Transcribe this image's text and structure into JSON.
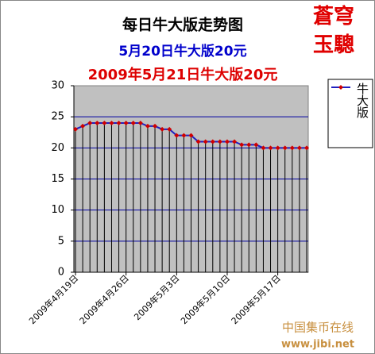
{
  "chart_data": {
    "type": "line",
    "title": "每日牛大版走势图",
    "subtitle": "5月20日牛大版20元",
    "subtitle2": "2009年5月21日牛大版20元",
    "stamp": [
      "蒼穹",
      "玉驄"
    ],
    "watermark": [
      "中国集币在线",
      "www.jibi.net"
    ],
    "categories": [
      "2009年4月19日",
      null,
      null,
      null,
      null,
      null,
      null,
      "2009年4月26日",
      null,
      null,
      null,
      null,
      null,
      null,
      "2009年5月3日",
      null,
      null,
      null,
      null,
      null,
      null,
      "2009年5月10日",
      null,
      null,
      null,
      null,
      null,
      null,
      "2009年5月17日",
      null,
      null,
      null,
      null
    ],
    "series": [
      {
        "name": "牛大版",
        "color": "#2020c0",
        "marker_color": "#d00000",
        "values": [
          23,
          23.5,
          24,
          24,
          24,
          24,
          24,
          24,
          24,
          24,
          23.5,
          23.5,
          23,
          23,
          22,
          22,
          22,
          21,
          21,
          21,
          21,
          21,
          21,
          20.5,
          20.5,
          20.5,
          20,
          20,
          20,
          20,
          20,
          20,
          20
        ]
      }
    ],
    "ylim": [
      0,
      30
    ],
    "yticks": [
      0,
      5,
      10,
      15,
      20,
      25,
      30
    ],
    "grid": true,
    "drop_lines": true,
    "legend": "right"
  }
}
